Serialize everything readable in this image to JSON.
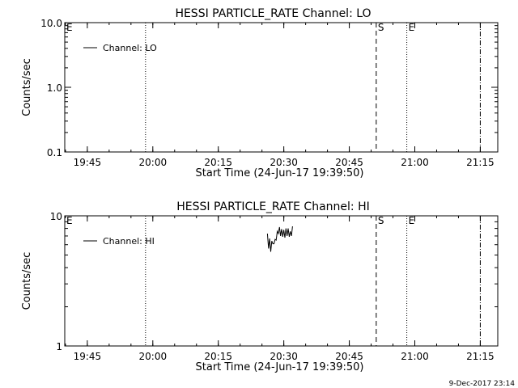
{
  "chart_data": [
    {
      "type": "line",
      "title": "HESSI PARTICLE_RATE Channel: LO",
      "xlabel": "Start Time (24-Jun-17 19:39:50)",
      "ylabel": "Counts/sec",
      "y_scale": "log",
      "ylim": [
        0.1,
        10.0
      ],
      "xlim": [
        "19:39:50",
        "21:19:00"
      ],
      "x_ticks": [
        "19:45",
        "20:00",
        "20:15",
        "20:30",
        "20:45",
        "21:00",
        "21:15"
      ],
      "y_ticks": [
        "0.1",
        "1.0",
        "10.0"
      ],
      "legend": {
        "position": "top-left"
      },
      "series": [
        {
          "name": "Channel: LO",
          "x": [],
          "y": []
        }
      ],
      "markers": [
        {
          "time": "19:39:50",
          "label": "E",
          "style": "none"
        },
        {
          "time": "19:58:20",
          "label": "",
          "style": "dotted"
        },
        {
          "time": "20:51:10",
          "label": "S",
          "style": "dashed"
        },
        {
          "time": "20:58:10",
          "label": "E",
          "style": "dotted"
        },
        {
          "time": "21:15:00",
          "label": "",
          "style": "dashdot"
        }
      ]
    },
    {
      "type": "line",
      "title": "HESSI PARTICLE_RATE Channel: HI",
      "xlabel": "Start Time (24-Jun-17 19:39:50)",
      "ylabel": "Counts/sec",
      "y_scale": "log",
      "ylim": [
        1,
        10
      ],
      "xlim": [
        "19:39:50",
        "21:19:00"
      ],
      "x_ticks": [
        "19:45",
        "20:00",
        "20:15",
        "20:30",
        "20:45",
        "21:00",
        "21:15"
      ],
      "y_ticks": [
        "1",
        "10"
      ],
      "legend": {
        "position": "top-left"
      },
      "series": [
        {
          "name": "Channel: HI",
          "x": [
            "20:26:15",
            "20:26:30",
            "20:26:45",
            "20:27:00",
            "20:27:15",
            "20:27:30",
            "20:27:45",
            "20:28:00",
            "20:28:15",
            "20:28:30",
            "20:28:45",
            "20:29:00",
            "20:29:15",
            "20:29:30",
            "20:29:45",
            "20:30:00",
            "20:30:15",
            "20:30:30",
            "20:30:45",
            "20:31:00",
            "20:31:15",
            "20:31:30",
            "20:31:45",
            "20:32:00"
          ],
          "y": [
            7.3,
            5.6,
            6.7,
            5.3,
            6.4,
            6.1,
            6.1,
            6.6,
            6.5,
            7.6,
            7.3,
            8.2,
            7.0,
            7.9,
            6.9,
            7.8,
            6.8,
            8.0,
            7.0,
            8.0,
            6.9,
            7.6,
            7.0,
            8.3
          ]
        }
      ],
      "markers": [
        {
          "time": "19:39:50",
          "label": "E",
          "style": "none"
        },
        {
          "time": "19:58:20",
          "label": "",
          "style": "dotted"
        },
        {
          "time": "20:51:10",
          "label": "S",
          "style": "dashed"
        },
        {
          "time": "20:58:10",
          "label": "E",
          "style": "dotted"
        },
        {
          "time": "21:15:00",
          "label": "",
          "style": "dashdot"
        }
      ]
    }
  ],
  "footer": {
    "timestamp": "9-Dec-2017 23:14"
  }
}
